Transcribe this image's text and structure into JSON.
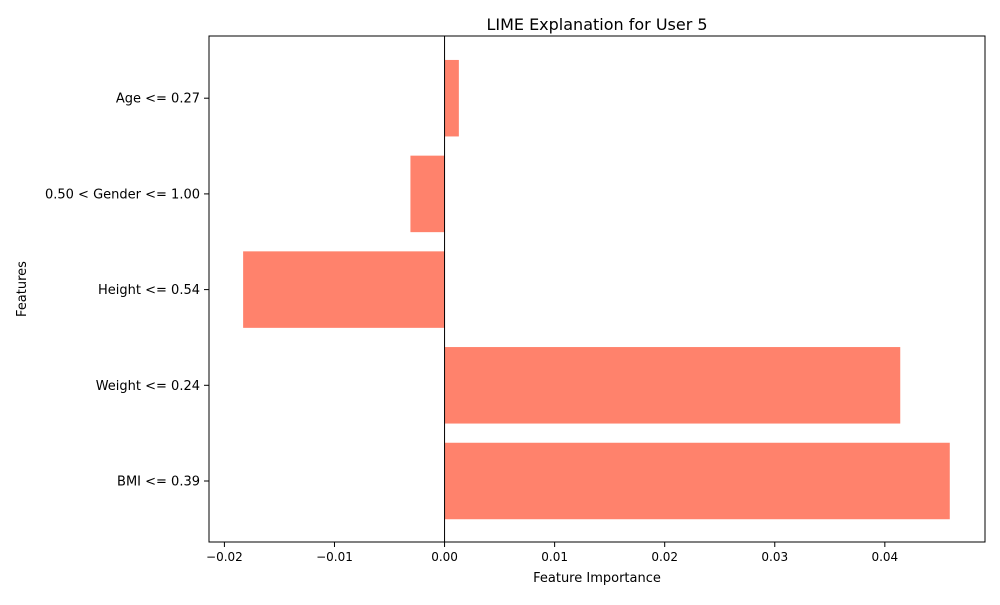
{
  "chart_data": {
    "type": "bar",
    "orientation": "horizontal",
    "title": "LIME Explanation for User 5",
    "xlabel": "Feature Importance",
    "ylabel": "Features",
    "categories": [
      "BMI <= 0.39",
      "Weight <= 0.24",
      "Height <= 0.54",
      "0.50 < Gender <= 1.00",
      "Age <= 0.27"
    ],
    "values": [
      0.0459,
      0.0414,
      -0.0183,
      -0.0031,
      0.0013
    ],
    "xlim": [
      -0.0214,
      0.0491
    ],
    "xticks": [
      -0.02,
      -0.01,
      0.0,
      0.01,
      0.02,
      0.03,
      0.04
    ],
    "xtick_labels": [
      "−0.02",
      "−0.01",
      "0.00",
      "0.01",
      "0.02",
      "0.03",
      "0.04"
    ],
    "zero_line": true,
    "grid": false,
    "bar_color": "#ff826c"
  }
}
